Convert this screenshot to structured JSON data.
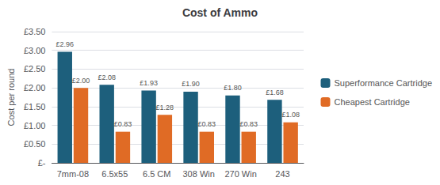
{
  "chart_data": {
    "type": "bar",
    "title": "Cost of Ammo",
    "categories": [
      "7mm-08",
      "6.5x55",
      "6.5 CM",
      "308 Win",
      "270 Win",
      "243"
    ],
    "series": [
      {
        "name": "Superformance Cartridge",
        "color": "#1d5f7c",
        "values": [
          2.96,
          2.08,
          1.93,
          1.9,
          1.8,
          1.68
        ],
        "value_labels": [
          "£2.96",
          "£2.08",
          "£1.93",
          "£1.90",
          "£1.80",
          "£1.68"
        ]
      },
      {
        "name": "Cheapest Cartridge",
        "color": "#e06b25",
        "values": [
          2.0,
          0.83,
          1.28,
          0.83,
          0.83,
          1.08
        ],
        "value_labels": [
          "£2.00",
          "£0.83",
          "£1.28",
          "£0.83",
          "£0.83",
          "£1.08"
        ]
      }
    ],
    "ylabel": "Cost per round",
    "ylim": [
      0,
      3.5
    ],
    "yticks": [
      {
        "value": 0,
        "label": "£-"
      },
      {
        "value": 0.5,
        "label": "£0.50"
      },
      {
        "value": 1.0,
        "label": "£1.00"
      },
      {
        "value": 1.5,
        "label": "£1.50"
      },
      {
        "value": 2.0,
        "label": "£2.00"
      },
      {
        "value": 2.5,
        "label": "£2.50"
      },
      {
        "value": 3.0,
        "label": "£3.00"
      },
      {
        "value": 3.5,
        "label": "£3.50"
      }
    ],
    "grid": true,
    "data_labels": true,
    "legend": "right"
  }
}
